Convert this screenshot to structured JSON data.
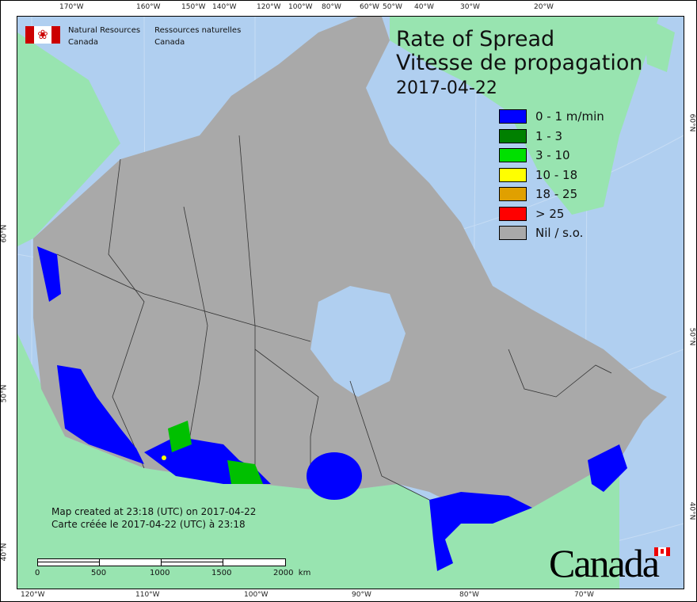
{
  "header": {
    "agency_en": [
      "Natural Resources",
      "Canada"
    ],
    "agency_fr": [
      "Ressources naturelles",
      "Canada"
    ]
  },
  "title": {
    "en": "Rate of Spread",
    "fr": "Vitesse de propagation",
    "date": "2017-04-22"
  },
  "legend": [
    {
      "label": "0 - 1 m/min",
      "color": "#0000ff"
    },
    {
      "label": "1 - 3",
      "color": "#008000"
    },
    {
      "label": "3 - 10",
      "color": "#00e000"
    },
    {
      "label": "10 - 18",
      "color": "#ffff00"
    },
    {
      "label": "18 - 25",
      "color": "#e0a000"
    },
    {
      "label": "> 25",
      "color": "#ff0000"
    },
    {
      "label": "Nil / s.o.",
      "color": "#a9a9a9"
    }
  ],
  "credit": {
    "en": "Map created at 23:18 (UTC) on 2017-04-22",
    "fr": "Carte créée le 2017-04-22 (UTC) à 23:18"
  },
  "scale_bar": {
    "labels": [
      "0",
      "500",
      "1000",
      "1500",
      "2000  km"
    ]
  },
  "wordmark": "Canada",
  "graticule": {
    "top": [
      "170°W",
      "160°W",
      "150°W",
      "140°W",
      "120°W",
      "100°W",
      "80°W",
      "60°W",
      "50°W",
      "40°W",
      "30°W",
      "20°W"
    ],
    "bottom": [
      "120°W",
      "110°W",
      "100°W",
      "90°W",
      "80°W",
      "70°W"
    ],
    "left": [
      "60°N",
      "50°N",
      "40°N"
    ],
    "right": [
      "60°N",
      "50°N",
      "40°N"
    ]
  },
  "colors": {
    "ocean": "#b0cff0",
    "land_other": "#98e4b0",
    "canada": "#a9a9a9",
    "border": "#333333"
  }
}
